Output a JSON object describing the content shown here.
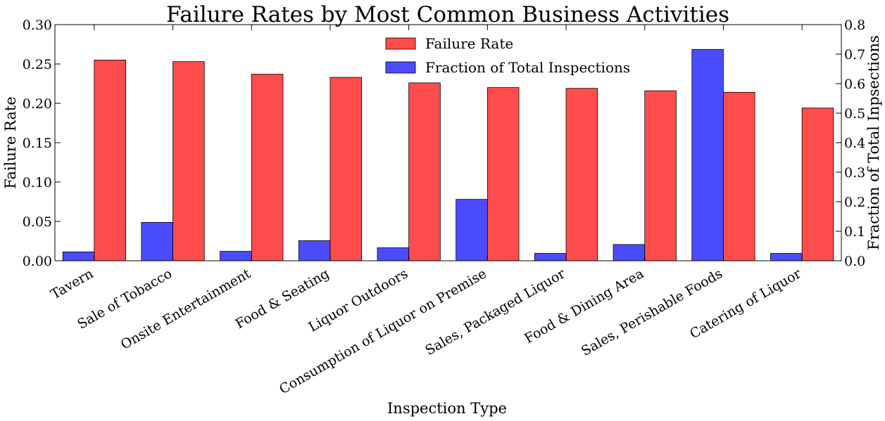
{
  "chart_data": {
    "type": "bar",
    "title": "Failure Rates by Most Common Business Activities",
    "xlabel": "Inspection Type",
    "ylabel": "Failure Rate",
    "ylabel_right": "Fraction of Total Inpsections",
    "categories": [
      "Tavern",
      "Sale of Tobacco",
      "Onsite Entertainment",
      "Food & Seating",
      "Liquor Outdoors",
      "Consumption of Liquor on Premise",
      "Sales, Packaged Liquor",
      "Food & Dining Area",
      "Sales, Perishable Foods",
      "Catering of Liquor"
    ],
    "series": [
      {
        "name": "Failure Rate",
        "axis": "left",
        "color": "#ff4c4c",
        "values": [
          0.255,
          0.253,
          0.237,
          0.233,
          0.226,
          0.22,
          0.219,
          0.216,
          0.214,
          0.194
        ]
      },
      {
        "name": "Fraction of Total Inspections",
        "axis": "right",
        "color": "#4c4cff",
        "values": [
          0.03,
          0.13,
          0.032,
          0.068,
          0.044,
          0.208,
          0.025,
          0.055,
          0.716,
          0.025
        ]
      }
    ],
    "ylim": [
      0,
      0.3
    ],
    "ylim_right": [
      0,
      0.8
    ],
    "yticks": [
      "0.00",
      "0.05",
      "0.10",
      "0.15",
      "0.20",
      "0.25",
      "0.30"
    ],
    "yticks_right": [
      "0.0",
      "0.1",
      "0.2",
      "0.3",
      "0.4",
      "0.5",
      "0.6",
      "0.7",
      "0.8"
    ],
    "legend_position": "top-center",
    "grid": false
  }
}
